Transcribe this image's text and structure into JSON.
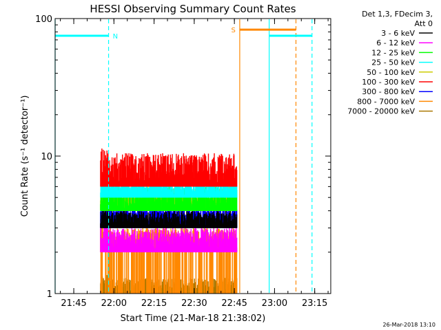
{
  "chart_data": {
    "type": "line",
    "title": "HESSI Observing Summary Count Rates",
    "xlabel": "Start Time (21-Mar-18 21:38:02)",
    "ylabel": "Count Rate (s⁻¹ detector⁻¹)",
    "x_scale": "time",
    "y_scale": "log",
    "xlim": [
      "21:38:02",
      "23:21:00"
    ],
    "ylim": [
      1,
      100
    ],
    "x_ticks": [
      "21:45",
      "22:00",
      "22:15",
      "22:30",
      "22:45",
      "23:00",
      "23:15"
    ],
    "y_ticks": [
      "1",
      "10",
      "100"
    ],
    "legend_header": [
      "Det 1,3, FDecim 3,",
      "Att 0"
    ],
    "series": [
      {
        "name": "3 - 6 keV",
        "color": "#000000",
        "level": 3.0,
        "peak": 4.0
      },
      {
        "name": "6 - 12 keV",
        "color": "#ff00ff",
        "level": 2.0,
        "peak": 3.0
      },
      {
        "name": "12 - 25 keV",
        "color": "#00ff00",
        "level": 4.0,
        "peak": 6.0
      },
      {
        "name": "25 - 50 keV",
        "color": "#00ffff",
        "level": 5.0,
        "peak": 7.0
      },
      {
        "name": "50 - 100 keV",
        "color": "#cccc00",
        "level": 4.0,
        "peak": 6.0
      },
      {
        "name": "100 - 300 keV",
        "color": "#ff0000",
        "level": 6.0,
        "peak": 10.5
      },
      {
        "name": "300 - 800 keV",
        "color": "#0000ff",
        "level": 3.0,
        "peak": 4.5
      },
      {
        "name": "800 - 7000 keV",
        "color": "#ff8800",
        "level": 2.0,
        "peak": 3.0
      },
      {
        "name": "7000 - 20000 keV",
        "color": "#aa7700",
        "level": 1.0,
        "peak": 1.3
      }
    ],
    "data_window": [
      "21:55",
      "22:46"
    ],
    "flags": [
      {
        "label": "N",
        "color": "#00ffff",
        "y": 75,
        "x_start": "21:38:02",
        "x_end": "21:58",
        "x_end_dashed": "21:58"
      },
      {
        "label": "S",
        "color": "#ff8800",
        "y": 83,
        "x_start": "22:47",
        "x_end": "23:08",
        "x_end_dashed": "23:08"
      },
      {
        "label": "",
        "color": "#00ffff",
        "y": 75,
        "x_start": "22:58",
        "x_end": "23:14",
        "x_end_dashed": "23:14"
      }
    ],
    "vertical_lines": [
      {
        "color": "#00ffff",
        "x": "21:38:02",
        "style": "solid"
      },
      {
        "color": "#00ffff",
        "x": "21:58",
        "style": "dashed"
      },
      {
        "color": "#ff8800",
        "x": "22:47",
        "style": "solid"
      },
      {
        "color": "#00ffff",
        "x": "22:58",
        "style": "solid"
      },
      {
        "color": "#ff8800",
        "x": "23:08",
        "style": "dashed"
      },
      {
        "color": "#00ffff",
        "x": "23:14",
        "style": "dashed"
      }
    ]
  },
  "footer": {
    "date": "26-Mar-2018 13:10"
  }
}
